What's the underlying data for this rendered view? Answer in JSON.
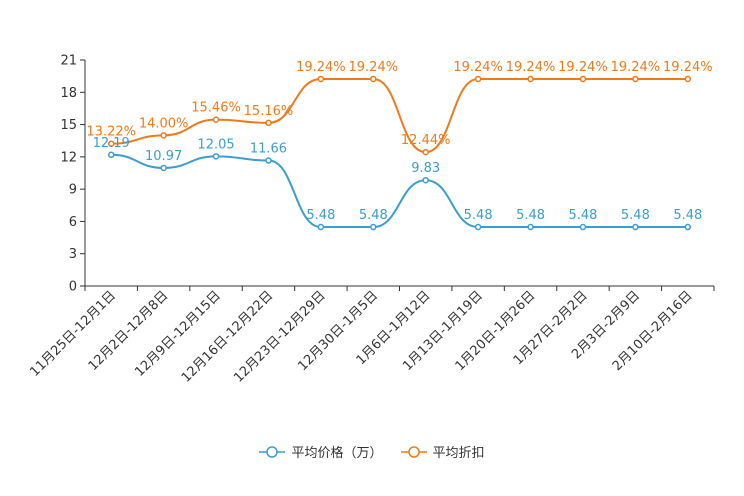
{
  "chart_data": {
    "type": "line",
    "title": "",
    "xlabel": "",
    "ylabel": "",
    "ylim": [
      0,
      21
    ],
    "yticks": [
      0,
      3,
      6,
      9,
      12,
      15,
      18,
      21
    ],
    "categories": [
      "11月25日-12月1日",
      "12月2日-12月8日",
      "12月9日-12月15日",
      "12月16日-12月22日",
      "12月23日-12月29日",
      "12月30日-1月5日",
      "1月6日-1月12日",
      "1月13日-1月19日",
      "1月20日-1月26日",
      "1月27日-2月2日",
      "2月3日-2月9日",
      "2月10日-2月16日"
    ],
    "series": [
      {
        "name": "平均价格（万）",
        "color": "#3a9ed0",
        "values": [
          12.19,
          10.97,
          12.05,
          11.66,
          5.48,
          5.48,
          9.83,
          5.48,
          5.48,
          5.48,
          5.48,
          5.48
        ],
        "labels": [
          "12.19",
          "10.97",
          "12.05",
          "11.66",
          "5.48",
          "5.48",
          "9.83",
          "5.48",
          "5.48",
          "5.48",
          "5.48",
          "5.48"
        ]
      },
      {
        "name": "平均折扣",
        "color": "#f07a1a",
        "values": [
          13.22,
          14.0,
          15.46,
          15.16,
          19.24,
          19.24,
          12.44,
          19.24,
          19.24,
          19.24,
          19.24,
          19.24
        ],
        "labels": [
          "13.22%",
          "14.00%",
          "15.46%",
          "15.16%",
          "19.24%",
          "19.24%",
          "12.44%",
          "19.24%",
          "19.24%",
          "19.24%",
          "19.24%",
          "19.24%"
        ]
      }
    ],
    "legend": "bottom-center",
    "grid": false
  },
  "legend": {
    "items": [
      {
        "label": "平均价格（万）",
        "color": "#3a9ed0"
      },
      {
        "label": "平均折扣",
        "color": "#f07a1a"
      }
    ]
  }
}
